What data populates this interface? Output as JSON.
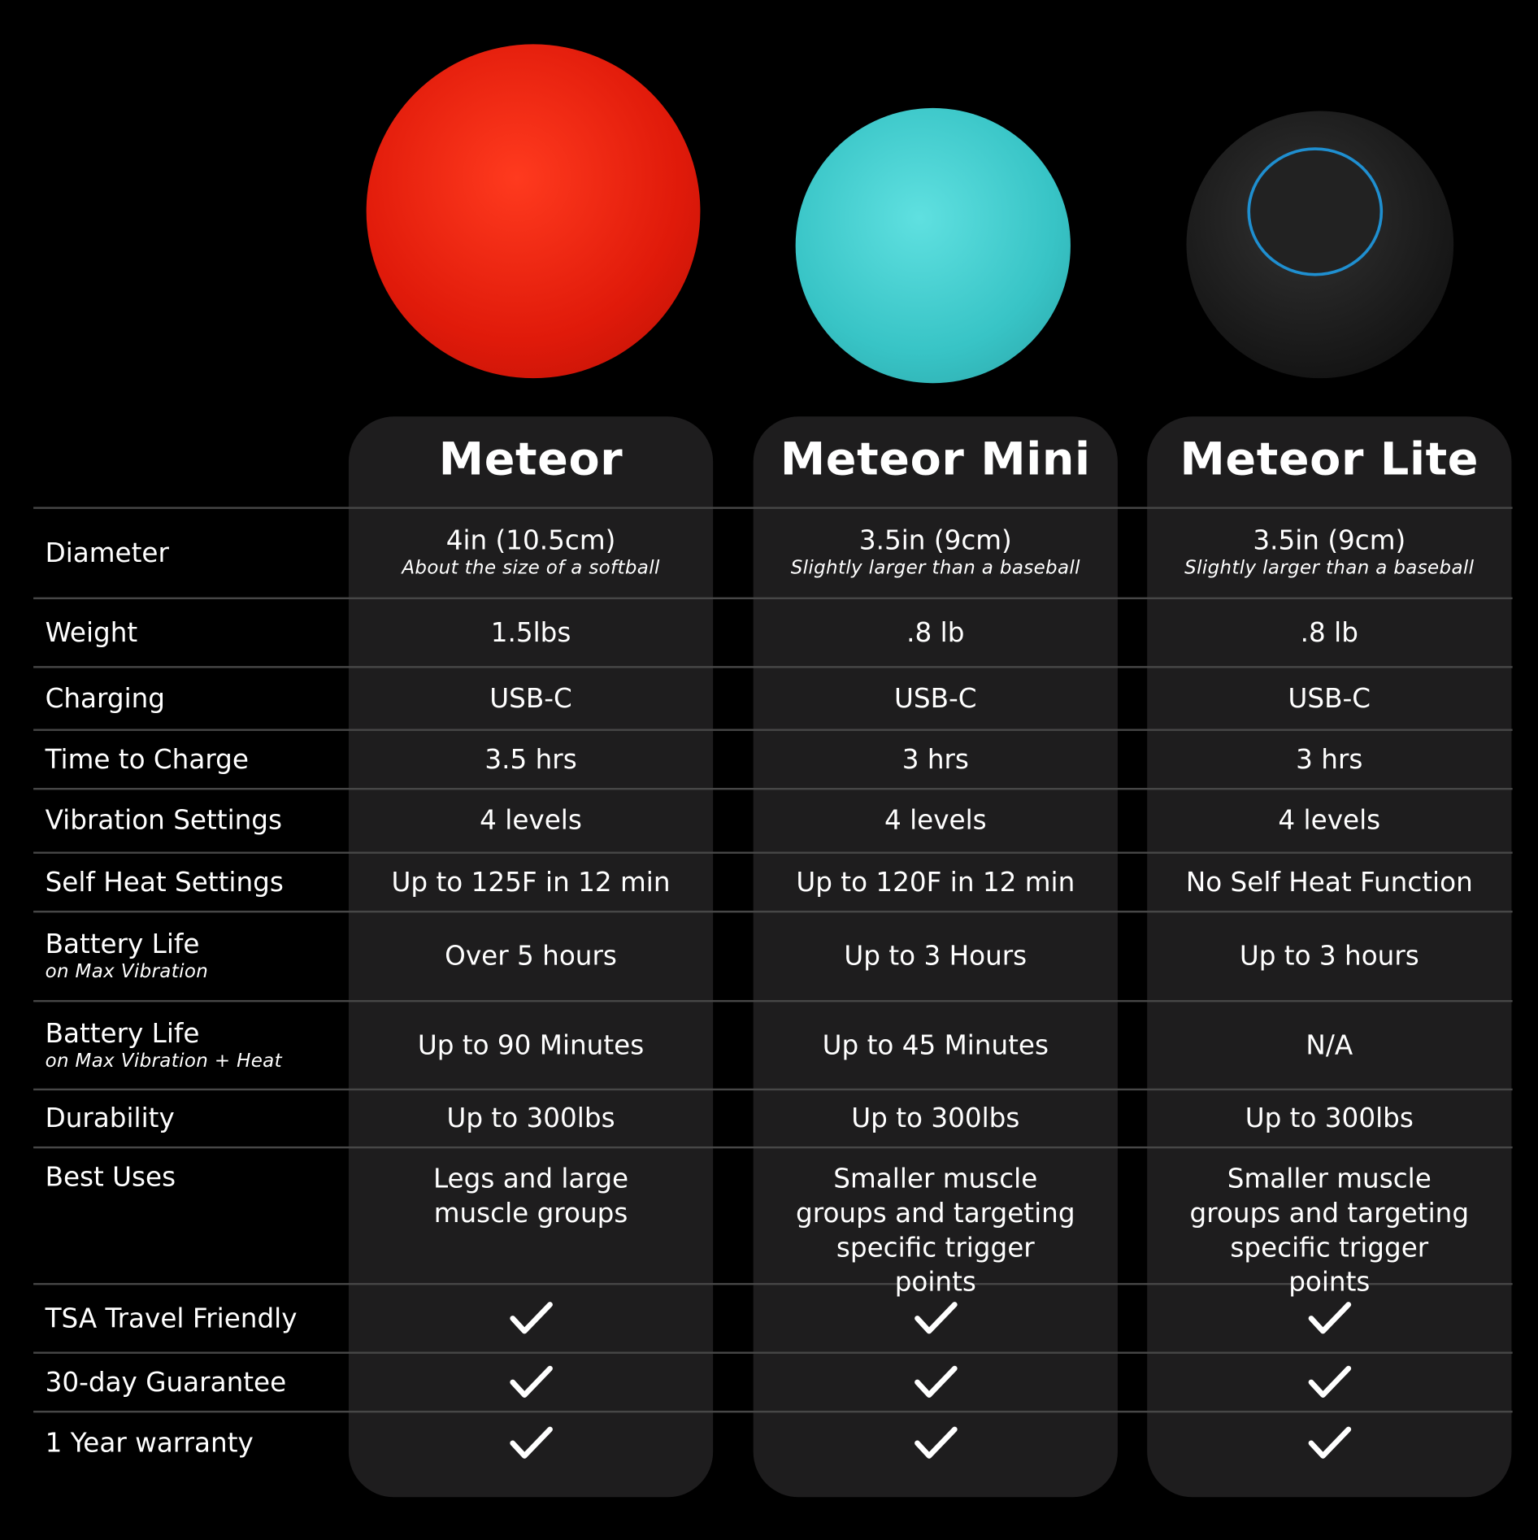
{
  "products": [
    {
      "name": "Meteor",
      "color": "#e8200f",
      "image": "red-massage-ball"
    },
    {
      "name": "Meteor Mini",
      "color": "#3cc9c9",
      "image": "teal-massage-ball"
    },
    {
      "name": "Meteor Lite",
      "color": "#1a1a1a",
      "image": "black-massage-ball"
    }
  ],
  "rows": [
    {
      "label": "Diameter",
      "values": [
        {
          "main": "4in (10.5cm)",
          "sub": "About the size of a softball"
        },
        {
          "main": "3.5in (9cm)",
          "sub": "Slightly larger than a baseball"
        },
        {
          "main": "3.5in (9cm)",
          "sub": "Slightly larger than a baseball"
        }
      ]
    },
    {
      "label": "Weight",
      "values": [
        {
          "main": "1.5lbs"
        },
        {
          "main": ".8 lb"
        },
        {
          "main": ".8 lb"
        }
      ]
    },
    {
      "label": "Charging",
      "values": [
        {
          "main": "USB-C"
        },
        {
          "main": "USB-C"
        },
        {
          "main": "USB-C"
        }
      ]
    },
    {
      "label": "Time to Charge",
      "values": [
        {
          "main": "3.5 hrs"
        },
        {
          "main": "3 hrs"
        },
        {
          "main": "3 hrs"
        }
      ]
    },
    {
      "label": "Vibration Settings",
      "values": [
        {
          "main": "4 levels"
        },
        {
          "main": "4 levels"
        },
        {
          "main": "4 levels"
        }
      ]
    },
    {
      "label": "Self Heat Settings",
      "values": [
        {
          "main": "Up to 125F in 12 min"
        },
        {
          "main": "Up to 120F in 12 min"
        },
        {
          "main": "No Self Heat Function"
        }
      ]
    },
    {
      "label": "Battery Life",
      "sublabel": "on Max Vibration",
      "values": [
        {
          "main": "Over 5 hours"
        },
        {
          "main": "Up to 3 Hours"
        },
        {
          "main": "Up to 3 hours"
        }
      ]
    },
    {
      "label": "Battery Life",
      "sublabel": "on Max Vibration + Heat",
      "values": [
        {
          "main": "Up to 90 Minutes"
        },
        {
          "main": "Up to 45 Minutes"
        },
        {
          "main": "N/A"
        }
      ]
    },
    {
      "label": "Durability",
      "values": [
        {
          "main": "Up to 300lbs"
        },
        {
          "main": "Up to 300lbs"
        },
        {
          "main": "Up to 300lbs"
        }
      ]
    },
    {
      "label": "Best Uses",
      "values": [
        {
          "main": "Legs and large muscle groups"
        },
        {
          "main": "Smaller muscle groups and targeting specific trigger points"
        },
        {
          "main": "Smaller muscle groups and targeting specific trigger points"
        }
      ]
    },
    {
      "label": "TSA Travel Friendly",
      "values": [
        {
          "check": true
        },
        {
          "check": true
        },
        {
          "check": true
        }
      ]
    },
    {
      "label": "30-day Guarantee",
      "values": [
        {
          "check": true
        },
        {
          "check": true
        },
        {
          "check": true
        }
      ]
    },
    {
      "label": "1 Year warranty",
      "values": [
        {
          "check": true
        },
        {
          "check": true
        },
        {
          "check": true
        }
      ]
    }
  ]
}
